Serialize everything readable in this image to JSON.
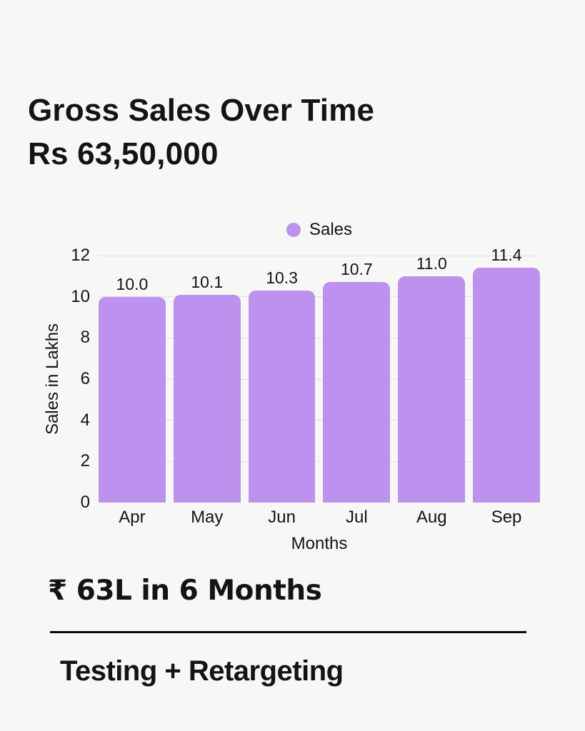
{
  "header": {
    "title_line1": "Gross Sales Over Time",
    "title_line2": "Rs 63,50,000"
  },
  "legend": {
    "label": "Sales"
  },
  "chart_data": {
    "type": "bar",
    "categories": [
      "Apr",
      "May",
      "Jun",
      "Jul",
      "Aug",
      "Sep"
    ],
    "series": [
      {
        "name": "Sales",
        "values": [
          10.0,
          10.1,
          10.3,
          10.7,
          11.0,
          11.4
        ]
      }
    ],
    "value_labels": [
      "10.0",
      "10.1",
      "10.3",
      "10.7",
      "11.0",
      "11.4"
    ],
    "title": "",
    "xlabel": "Months",
    "ylabel": "Sales in Lakhs",
    "ylim": [
      0,
      12
    ],
    "yticks": [
      0,
      2,
      4,
      6,
      8,
      10,
      12
    ],
    "grid": "horizontal",
    "legend_position": "top-center"
  },
  "footer": {
    "headline": "₹ 63L in 6 Months",
    "subtitle": "Testing + Retargeting"
  },
  "colors": {
    "background": "#f7f7f6",
    "bar": "#bc92ee",
    "text": "#141414",
    "gridline": "#e1e0de",
    "divider": "#0a0a0a"
  }
}
